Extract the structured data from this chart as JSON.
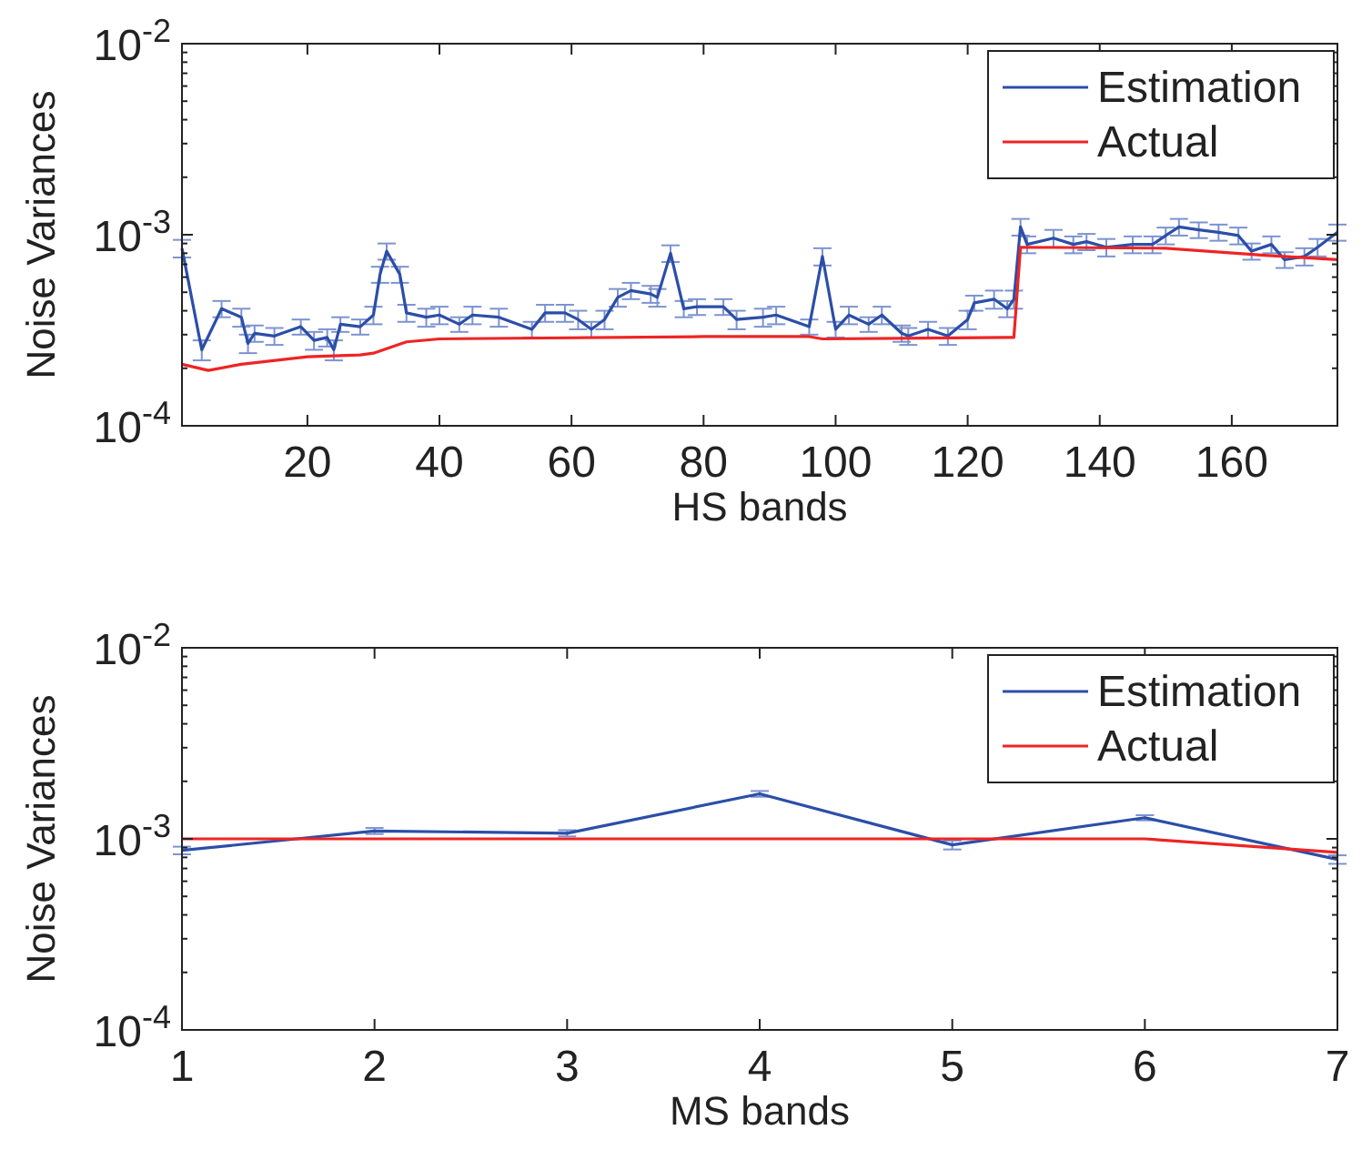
{
  "chart_data": [
    {
      "type": "line",
      "xlabel": "HS bands",
      "ylabel": "Noise Variances",
      "log": "y",
      "legend": "top right",
      "marker": "none",
      "xlim": [
        1,
        176
      ],
      "xticks": [
        20,
        40,
        60,
        80,
        100,
        120,
        140,
        160
      ],
      "ylim": [
        0.0001,
        0.01
      ],
      "yticks": [
        {
          "value": 0.0001,
          "label": "10$^{-4}$"
        },
        {
          "value": 0.0002,
          "label": null
        },
        {
          "value": 0.0003,
          "label": null
        },
        {
          "value": 0.0004,
          "label": null
        },
        {
          "value": 0.0005,
          "label": null
        },
        {
          "value": 0.0006,
          "label": null
        },
        {
          "value": 0.0007,
          "label": null
        },
        {
          "value": 0.0008,
          "label": null
        },
        {
          "value": 0.0009,
          "label": null
        },
        {
          "value": 0.001,
          "label": "10$^{-3}$"
        },
        {
          "value": 0.002,
          "label": null
        },
        {
          "value": 0.003,
          "label": null
        },
        {
          "value": 0.004,
          "label": null
        },
        {
          "value": 0.005,
          "label": null
        },
        {
          "value": 0.006,
          "label": null
        },
        {
          "value": 0.007,
          "label": null
        },
        {
          "value": 0.008,
          "label": null
        },
        {
          "value": 0.009,
          "label": null
        },
        {
          "value": 0.01,
          "label": "10$^{-2}$"
        }
      ],
      "series": [
        {
          "name": "Estimation",
          "color": "#2b4ea8",
          "x": [
            1,
            4,
            7,
            10,
            11,
            12,
            15,
            19,
            21,
            23,
            24,
            25,
            28,
            30,
            31,
            32,
            34,
            35,
            38,
            40,
            43,
            45,
            49,
            54,
            56,
            59,
            61,
            63,
            65,
            67,
            69,
            72,
            73,
            75,
            77,
            79,
            83,
            85,
            89,
            91,
            96,
            98,
            100,
            102,
            105,
            107,
            110,
            111,
            114,
            117,
            120,
            121,
            124,
            126,
            127,
            128,
            129,
            133,
            136,
            138,
            141,
            145,
            148,
            150,
            152,
            155,
            158,
            161,
            163,
            166,
            168,
            171,
            173,
            176
          ],
          "values": [
            0.00085,
            0.00025,
            0.00041,
            0.00037,
            0.00027,
            0.000305,
            0.000295,
            0.00033,
            0.00028,
            0.00029,
            0.00025,
            0.00034,
            0.00033,
            0.00038,
            0.00062,
            0.00082,
            0.00062,
            0.00039,
            0.00037,
            0.00038,
            0.00034,
            0.00038,
            0.00037,
            0.00032,
            0.00039,
            0.00039,
            0.00036,
            0.00032,
            0.00036,
            0.00047,
            0.00051,
            0.00049,
            0.00047,
            0.0008,
            0.00041,
            0.00042,
            0.00042,
            0.00036,
            0.00037,
            0.00038,
            0.00033,
            0.00077,
            0.00032,
            0.00038,
            0.00034,
            0.00038,
            0.000305,
            0.000295,
            0.00032,
            0.000295,
            0.00036,
            0.00044,
            0.00046,
            0.00041,
            0.00046,
            0.0011,
            0.00089,
            0.00096,
            0.00089,
            0.00092,
            0.00086,
            0.00089,
            0.00089,
            0.00099,
            0.0011,
            0.00106,
            0.00103,
            0.00099,
            0.00082,
            0.00089,
            0.00074,
            0.00077,
            0.00086,
            0.00103
          ],
          "errors": [
            9e-05,
            3e-05,
            4e-05,
            4e-05,
            3e-05,
            3e-05,
            3e-05,
            3e-05,
            3e-05,
            3e-05,
            3e-05,
            3e-05,
            3e-05,
            4e-05,
            6e-05,
            8e-05,
            6e-05,
            4e-05,
            4e-05,
            4e-05,
            3e-05,
            4e-05,
            4e-05,
            3e-05,
            4e-05,
            4e-05,
            4e-05,
            3e-05,
            4e-05,
            5e-05,
            5e-05,
            5e-05,
            5e-05,
            8e-05,
            4e-05,
            4e-05,
            4e-05,
            4e-05,
            4e-05,
            4e-05,
            3e-05,
            8e-05,
            3e-05,
            4e-05,
            3e-05,
            4e-05,
            3e-05,
            3e-05,
            3e-05,
            3e-05,
            4e-05,
            4e-05,
            5e-05,
            4e-05,
            5e-05,
            0.00011,
            9e-05,
            0.0001,
            9e-05,
            9e-05,
            9e-05,
            9e-05,
            9e-05,
            0.0001,
            0.00011,
            0.0001,
            0.0001,
            0.0001,
            8e-05,
            9e-05,
            7e-05,
            8e-05,
            9e-05,
            0.0001
          ]
        },
        {
          "name": "Actual",
          "color": "#ee2424",
          "x": [
            1,
            5,
            10,
            20,
            28,
            30,
            35,
            40,
            80,
            96,
            98,
            126,
            127,
            128,
            150,
            165,
            176
          ],
          "values": [
            0.00021,
            0.000195,
            0.00021,
            0.00023,
            0.000235,
            0.00024,
            0.000275,
            0.000285,
            0.000293,
            0.000293,
            0.000285,
            0.00029,
            0.00029,
            0.00086,
            0.00085,
            0.00078,
            0.00074
          ]
        }
      ]
    },
    {
      "type": "line",
      "xlabel": "MS bands",
      "ylabel": "Noise Variances",
      "log": "y",
      "legend": "top right",
      "marker": "none",
      "xlim": [
        1,
        7
      ],
      "xticks": [
        1,
        2,
        3,
        4,
        5,
        6,
        7
      ],
      "ylim": [
        0.0001,
        0.01
      ],
      "yticks": [
        {
          "value": 0.0001,
          "label": "10$^{-4}$"
        },
        {
          "value": 0.0002,
          "label": null
        },
        {
          "value": 0.0003,
          "label": null
        },
        {
          "value": 0.0004,
          "label": null
        },
        {
          "value": 0.0005,
          "label": null
        },
        {
          "value": 0.0006,
          "label": null
        },
        {
          "value": 0.0007,
          "label": null
        },
        {
          "value": 0.0008,
          "label": null
        },
        {
          "value": 0.0009,
          "label": null
        },
        {
          "value": 0.001,
          "label": "10$^{-3}$"
        },
        {
          "value": 0.002,
          "label": null
        },
        {
          "value": 0.003,
          "label": null
        },
        {
          "value": 0.004,
          "label": null
        },
        {
          "value": 0.005,
          "label": null
        },
        {
          "value": 0.006,
          "label": null
        },
        {
          "value": 0.007,
          "label": null
        },
        {
          "value": 0.008,
          "label": null
        },
        {
          "value": 0.009,
          "label": null
        },
        {
          "value": 0.01,
          "label": "10$^{-2}$"
        }
      ],
      "series": [
        {
          "name": "Estimation",
          "color": "#2b4ea8",
          "x": [
            1,
            2,
            3,
            4,
            5,
            6,
            7
          ],
          "values": [
            0.00087,
            0.0011,
            0.00107,
            0.00172,
            0.00093,
            0.00129,
            0.00078
          ],
          "errors": [
            4e-05,
            4e-05,
            4e-05,
            6e-05,
            5e-05,
            4e-05,
            4e-05
          ]
        },
        {
          "name": "Actual",
          "color": "#ee2424",
          "x": [
            1,
            2,
            3,
            4,
            5,
            6,
            7
          ],
          "values": [
            0.001,
            0.001,
            0.001,
            0.001,
            0.001,
            0.001,
            0.00085
          ]
        }
      ]
    }
  ]
}
